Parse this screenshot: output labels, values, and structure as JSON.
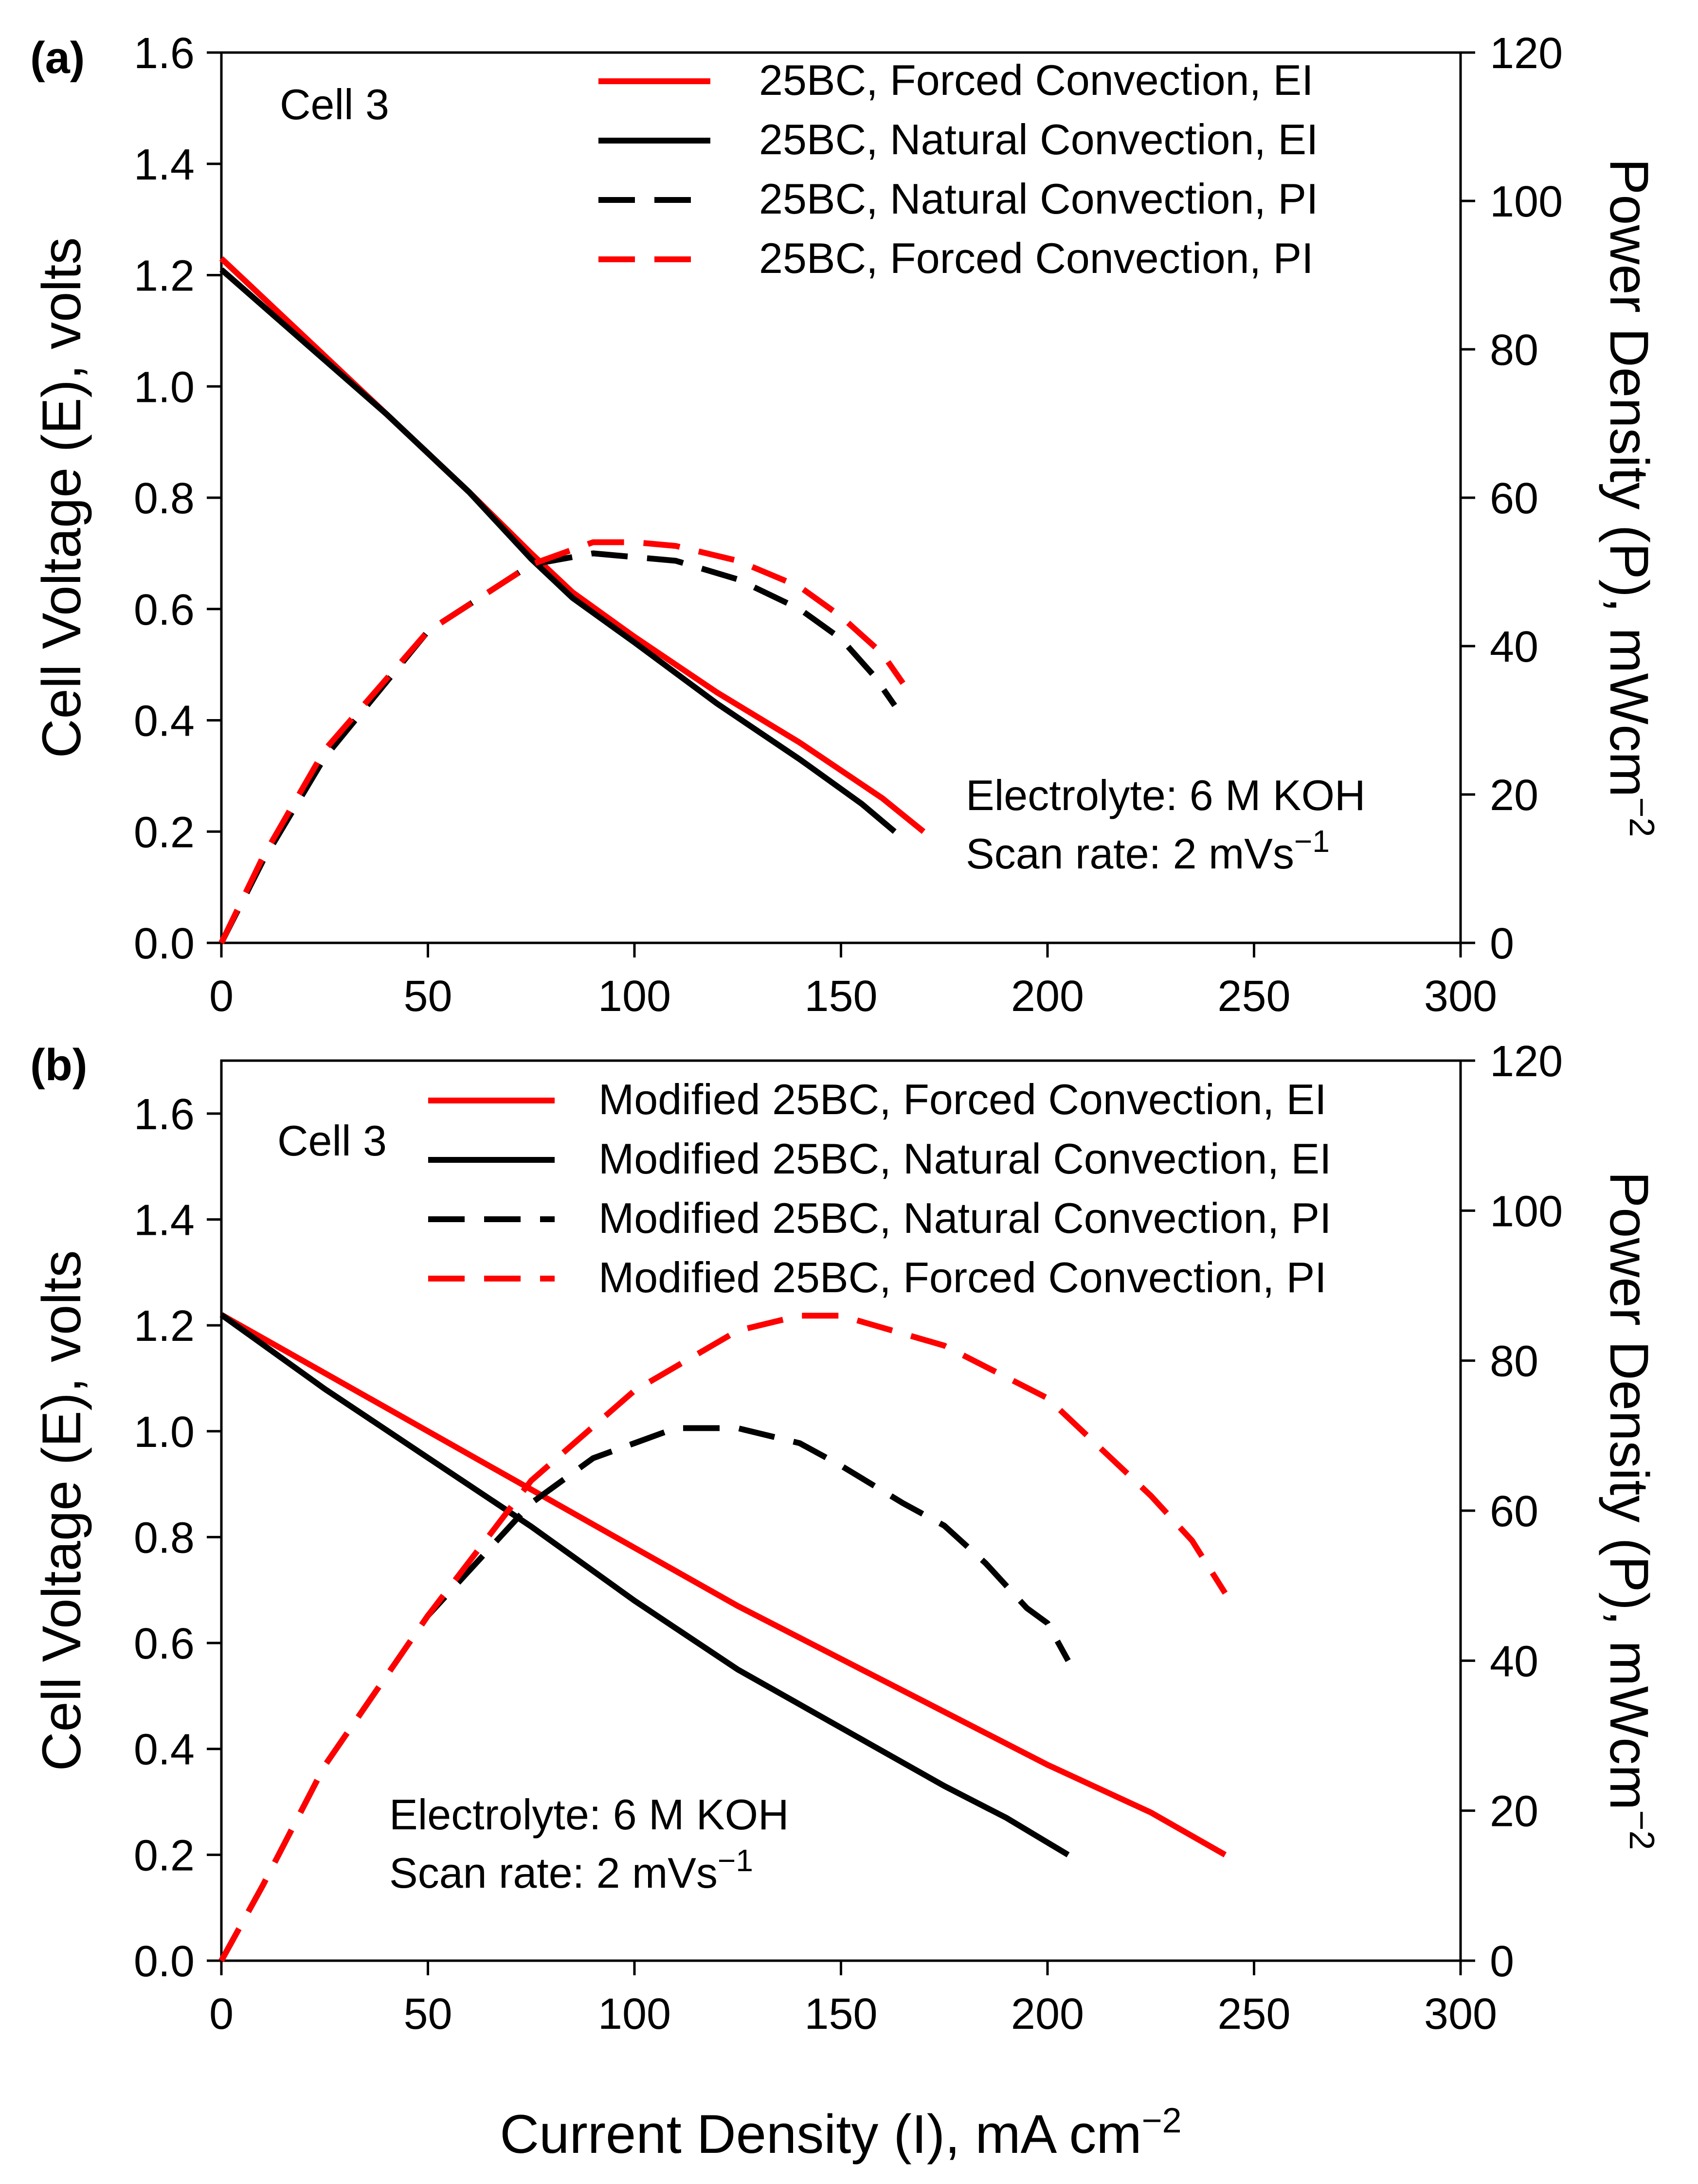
{
  "chart_data": [
    {
      "panel_label": "(a)",
      "type": "line",
      "title": "",
      "annotation": "Cell 3",
      "notes": [
        "Electrolyte: 6 M KOH",
        "Scan rate: 2 mVs"
      ],
      "notes_sup": "−1",
      "xlabel": "",
      "ylabel": "Cell Voltage (E), volts",
      "y2label": "Power Density (P), mWcm",
      "y2label_sup": "−2",
      "xlim": [
        0,
        300
      ],
      "ylim": [
        0,
        1.6
      ],
      "y2lim": [
        0,
        120
      ],
      "xticks": [
        "0",
        "50",
        "100",
        "150",
        "200",
        "250",
        "300"
      ],
      "yticks": [
        "0.0",
        "0.2",
        "0.4",
        "0.6",
        "0.8",
        "1.0",
        "1.2",
        "1.4",
        "1.6"
      ],
      "y2ticks": [
        "0",
        "20",
        "40",
        "60",
        "80",
        "100",
        "120"
      ],
      "series": [
        {
          "name": "25BC, Forced Convection, EI",
          "color": "#ff0000",
          "dash": "solid",
          "axis": "left",
          "x": [
            0,
            20,
            40,
            60,
            75,
            85,
            100,
            120,
            140,
            160,
            170
          ],
          "y": [
            1.23,
            1.09,
            0.95,
            0.81,
            0.7,
            0.63,
            0.55,
            0.45,
            0.36,
            0.26,
            0.2
          ]
        },
        {
          "name": "25BC, Natural Convection, EI",
          "color": "#000000",
          "dash": "solid",
          "axis": "left",
          "x": [
            0,
            20,
            40,
            60,
            75,
            85,
            100,
            120,
            140,
            155,
            163
          ],
          "y": [
            1.21,
            1.08,
            0.95,
            0.81,
            0.69,
            0.62,
            0.54,
            0.43,
            0.33,
            0.25,
            0.2
          ]
        },
        {
          "name": "25BC, Natural Convection, PI",
          "color": "#000000",
          "dash": "dash",
          "axis": "right",
          "x": [
            0,
            10,
            25,
            50,
            75,
            90,
            100,
            110,
            125,
            140,
            150,
            158,
            163
          ],
          "y": [
            0,
            11,
            25,
            42,
            51,
            52.5,
            52,
            51.5,
            49,
            45,
            41,
            36,
            32
          ]
        },
        {
          "name": "25BC, Forced Convection, PI",
          "color": "#ff0000",
          "dash": "dash",
          "axis": "right",
          "x": [
            0,
            10,
            25,
            50,
            75,
            90,
            100,
            110,
            125,
            140,
            150,
            160,
            165
          ],
          "y": [
            0,
            11.5,
            26,
            42,
            51,
            54,
            54,
            53.5,
            51.5,
            48,
            44,
            39,
            35
          ]
        }
      ]
    },
    {
      "panel_label": "(b)",
      "type": "line",
      "title": "",
      "annotation": "Cell 3",
      "notes": [
        "Electrolyte: 6 M KOH",
        "Scan rate: 2 mVs"
      ],
      "notes_sup": "−1",
      "xlabel": "Current Density (I), mA cm",
      "xlabel_sup": "−2",
      "ylabel": "Cell Voltage (E), volts",
      "y2label": "Power Density (P), mWcm",
      "y2label_sup": "−2",
      "xlim": [
        0,
        300
      ],
      "ylim": [
        0,
        1.7
      ],
      "y2lim": [
        0,
        120
      ],
      "xticks": [
        "0",
        "50",
        "100",
        "150",
        "200",
        "250",
        "300"
      ],
      "yticks": [
        "0.0",
        "0.2",
        "0.4",
        "0.6",
        "0.8",
        "1.0",
        "1.2",
        "1.4",
        "1.6"
      ],
      "y2ticks": [
        "0",
        "20",
        "40",
        "60",
        "80",
        "100",
        "120"
      ],
      "series": [
        {
          "name": "Modified 25BC, Forced Convection, EI",
          "color": "#ff0000",
          "dash": "solid",
          "axis": "left",
          "x": [
            0,
            25,
            50,
            75,
            100,
            125,
            150,
            175,
            200,
            225,
            243
          ],
          "y": [
            1.22,
            1.11,
            1.0,
            0.89,
            0.78,
            0.67,
            0.57,
            0.47,
            0.37,
            0.28,
            0.2
          ]
        },
        {
          "name": "Modified 25BC, Natural Convection, EI",
          "color": "#000000",
          "dash": "solid",
          "axis": "left",
          "x": [
            0,
            25,
            50,
            75,
            100,
            125,
            150,
            175,
            190,
            205
          ],
          "y": [
            1.22,
            1.08,
            0.95,
            0.82,
            0.68,
            0.55,
            0.44,
            0.33,
            0.27,
            0.2
          ]
        },
        {
          "name": "Modified 25BC, Natural Convection, PI",
          "color": "#000000",
          "dash": "dash",
          "axis": "right",
          "x": [
            0,
            10,
            25,
            50,
            75,
            90,
            100,
            110,
            125,
            140,
            150,
            165,
            175,
            185,
            195,
            200,
            205
          ],
          "y": [
            0,
            10,
            26,
            46,
            61,
            67,
            69,
            71,
            71,
            69,
            66,
            61,
            58,
            53,
            47,
            45,
            40
          ]
        },
        {
          "name": "Modified 25BC, Forced Convection, PI",
          "color": "#ff0000",
          "dash": "dash",
          "axis": "right",
          "x": [
            0,
            10,
            25,
            50,
            75,
            100,
            125,
            140,
            150,
            175,
            200,
            225,
            235,
            243
          ],
          "y": [
            0,
            10,
            26,
            46,
            64,
            76,
            84,
            86,
            86,
            82,
            75,
            62,
            56,
            49
          ]
        }
      ]
    }
  ]
}
